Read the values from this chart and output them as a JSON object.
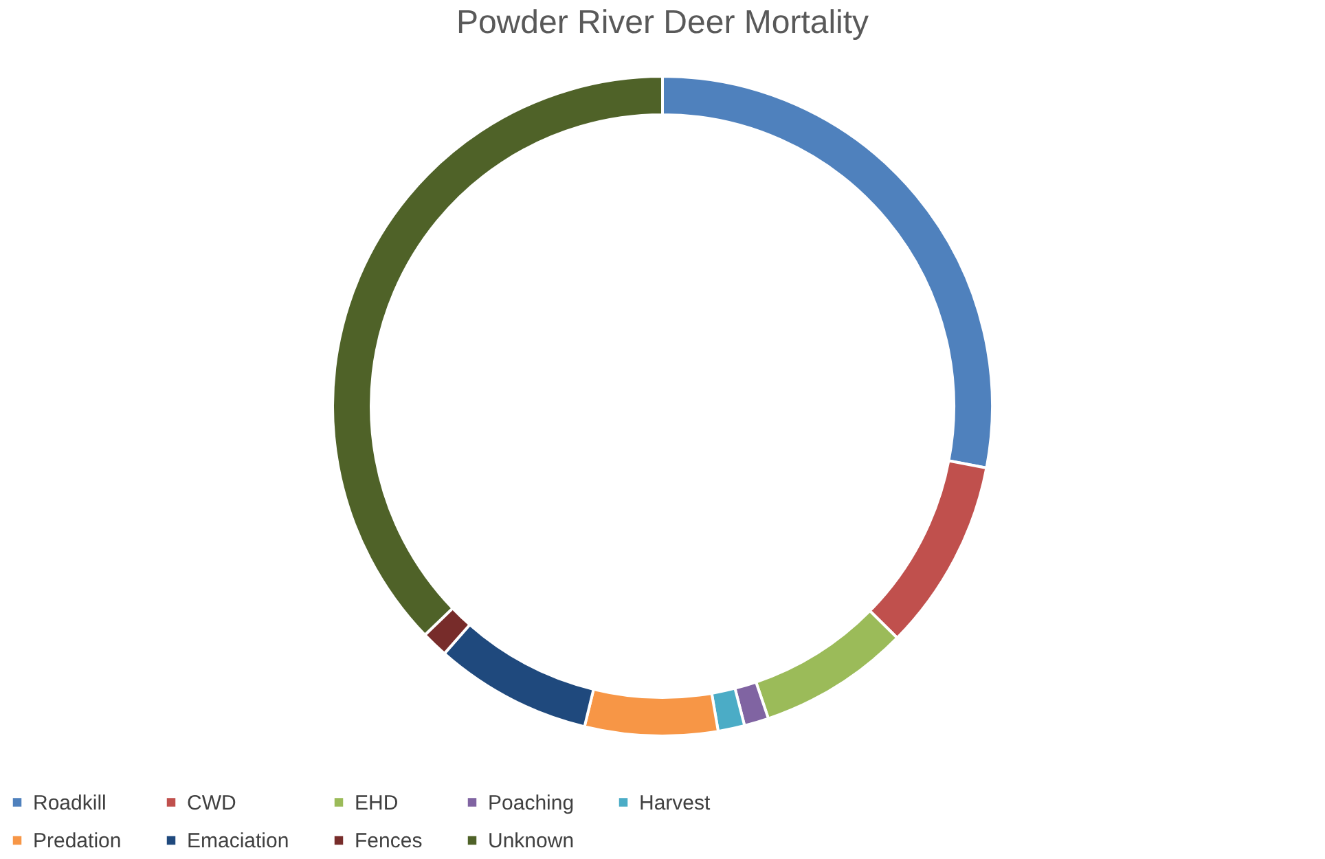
{
  "chart_data": {
    "type": "donut",
    "title": "Powder River Deer Mortality",
    "categories": [
      "Roadkill",
      "CWD",
      "EHD",
      "Poaching",
      "Harvest",
      "Predation",
      "Emaciation",
      "Fences",
      "Unknown"
    ],
    "values": [
      28,
      9.4,
      7.4,
      1.2,
      1.3,
      6.5,
      7.7,
      1.3,
      37.2
    ],
    "colors": [
      "#4f81bd",
      "#c0504d",
      "#9bbb59",
      "#8064a2",
      "#4bacc6",
      "#f79646",
      "#1f497d",
      "#772c2a",
      "#4f6228"
    ],
    "legend": "bottom"
  }
}
